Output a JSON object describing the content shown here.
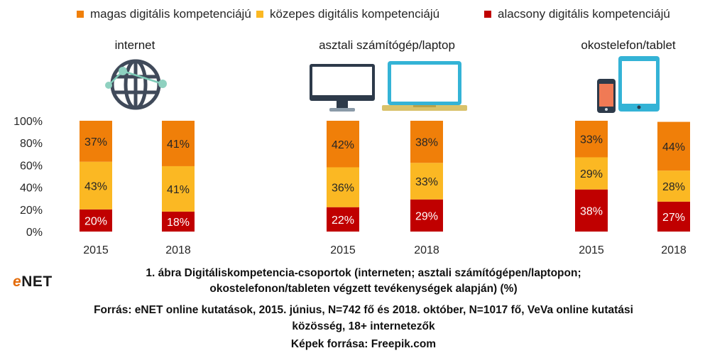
{
  "legend": [
    {
      "label": "magas digitális kompetenciájú",
      "color": "#f07f09"
    },
    {
      "label": "közepes digitális kompetenciájú",
      "color": "#fbb823"
    },
    {
      "label": "alacsony digitális kompetenciájú",
      "color": "#c00000"
    }
  ],
  "groups": [
    {
      "title": "internet",
      "icon": "globe-network-icon"
    },
    {
      "title": "asztali számítógép/laptop",
      "icon": "desktop-laptop-icon"
    },
    {
      "title": "okostelefon/tablet",
      "icon": "smartphone-tablet-icon"
    }
  ],
  "chart_data": {
    "type": "bar",
    "stacked": true,
    "categories": [
      "2015",
      "2018",
      "2015",
      "2018",
      "2015",
      "2018"
    ],
    "series": [
      {
        "name": "alacsony digitális kompetenciájú",
        "values": [
          20,
          18,
          22,
          29,
          38,
          27
        ],
        "labels": [
          "20%",
          "18%",
          "22%",
          "29%",
          "38%",
          "27%"
        ]
      },
      {
        "name": "közepes digitális kompetenciájú",
        "values": [
          43,
          41,
          36,
          33,
          29,
          28
        ],
        "labels": [
          "43%",
          "41%",
          "36%",
          "33%",
          "29%",
          "28%"
        ]
      },
      {
        "name": "magas digitális kompetenciájú",
        "values": [
          37,
          41,
          42,
          38,
          33,
          44
        ],
        "labels": [
          "37%",
          "41%",
          "42%",
          "38%",
          "33%",
          "44%"
        ]
      }
    ],
    "yticks": [
      "0%",
      "20%",
      "40%",
      "60%",
      "80%",
      "100%"
    ],
    "ylim": [
      0,
      100
    ],
    "grid": false
  },
  "logo": {
    "e": "e",
    "rest": "NET"
  },
  "footer": {
    "line1": "1. ábra Digitáliskompetencia-csoportok (interneten; asztali számítógépen/laptopon;",
    "line2": "okostelefonon/tableten végzett tevékenységek alapján) (%)",
    "line3": "Forrás: eNET online kutatások, 2015. június, N=742 fő és 2018. október, N=1017 fő, VeVa online kutatási",
    "line4": "közösség, 18+ internetezők",
    "line5": "Képek forrása: Freepik.com"
  }
}
